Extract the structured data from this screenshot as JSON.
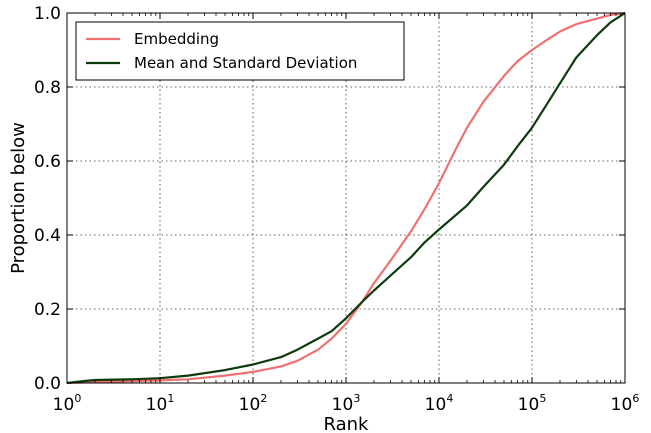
{
  "chart_data": {
    "type": "line",
    "xlabel": "Rank",
    "ylabel": "Proportion below",
    "xscale": "log",
    "xlim": [
      1,
      1000000
    ],
    "ylim": [
      0,
      1
    ],
    "grid": true,
    "legend_position": "top-left",
    "x_ticks": [
      {
        "base": "10",
        "exp": "0"
      },
      {
        "base": "10",
        "exp": "1"
      },
      {
        "base": "10",
        "exp": "2"
      },
      {
        "base": "10",
        "exp": "3"
      },
      {
        "base": "10",
        "exp": "4"
      },
      {
        "base": "10",
        "exp": "5"
      },
      {
        "base": "10",
        "exp": "6"
      }
    ],
    "y_ticks": [
      "0.0",
      "0.2",
      "0.4",
      "0.6",
      "0.8",
      "1.0"
    ],
    "series": [
      {
        "name": "Embedding",
        "color": "#f07070",
        "points": [
          [
            1,
            0
          ],
          [
            2,
            0.003
          ],
          [
            5,
            0.005
          ],
          [
            10,
            0.007
          ],
          [
            20,
            0.01
          ],
          [
            50,
            0.02
          ],
          [
            100,
            0.03
          ],
          [
            200,
            0.045
          ],
          [
            300,
            0.06
          ],
          [
            500,
            0.09
          ],
          [
            700,
            0.12
          ],
          [
            1000,
            0.16
          ],
          [
            1500,
            0.22
          ],
          [
            2000,
            0.27
          ],
          [
            3000,
            0.33
          ],
          [
            5000,
            0.41
          ],
          [
            7000,
            0.47
          ],
          [
            10000,
            0.54
          ],
          [
            15000,
            0.63
          ],
          [
            20000,
            0.69
          ],
          [
            30000,
            0.76
          ],
          [
            50000,
            0.83
          ],
          [
            70000,
            0.87
          ],
          [
            100000,
            0.9
          ],
          [
            150000,
            0.93
          ],
          [
            200000,
            0.95
          ],
          [
            300000,
            0.97
          ],
          [
            500000,
            0.985
          ],
          [
            700000,
            0.995
          ],
          [
            1000000,
            1.0
          ]
        ]
      },
      {
        "name": "Mean and Standard Deviation",
        "color": "#0d3b0d",
        "points": [
          [
            1,
            0
          ],
          [
            1.5,
            0.005
          ],
          [
            2,
            0.008
          ],
          [
            5,
            0.01
          ],
          [
            10,
            0.013
          ],
          [
            20,
            0.02
          ],
          [
            50,
            0.035
          ],
          [
            100,
            0.05
          ],
          [
            200,
            0.07
          ],
          [
            300,
            0.09
          ],
          [
            500,
            0.12
          ],
          [
            700,
            0.14
          ],
          [
            1000,
            0.175
          ],
          [
            1500,
            0.22
          ],
          [
            2000,
            0.25
          ],
          [
            3000,
            0.29
          ],
          [
            5000,
            0.34
          ],
          [
            7000,
            0.38
          ],
          [
            10000,
            0.415
          ],
          [
            20000,
            0.48
          ],
          [
            30000,
            0.53
          ],
          [
            50000,
            0.59
          ],
          [
            70000,
            0.64
          ],
          [
            100000,
            0.69
          ],
          [
            150000,
            0.76
          ],
          [
            200000,
            0.81
          ],
          [
            300000,
            0.88
          ],
          [
            500000,
            0.94
          ],
          [
            700000,
            0.975
          ],
          [
            1000000,
            1.0
          ]
        ]
      }
    ]
  }
}
